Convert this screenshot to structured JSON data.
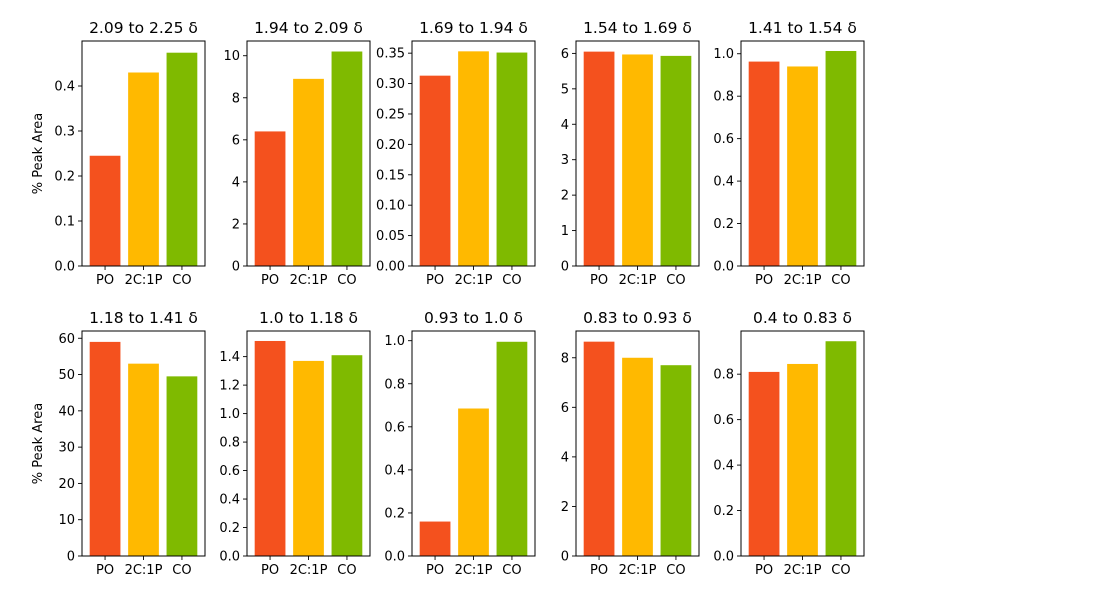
{
  "figure": {
    "ylabel": "% Peak Area",
    "colors": [
      "#f4511e",
      "#ffb900",
      "#7fba00"
    ]
  },
  "chart_data": [
    {
      "type": "bar",
      "title": "2.09 to 2.25 δ",
      "categories": [
        "PO",
        "2C:1P",
        "CO"
      ],
      "values": [
        0.245,
        0.43,
        0.474
      ],
      "ylim": [
        0,
        0.5
      ],
      "yticks": [
        0.0,
        0.1,
        0.2,
        0.3,
        0.4
      ],
      "tick_labels": [
        "0.0",
        "0.1",
        "0.2",
        "0.3",
        "0.4"
      ],
      "ylabel": "% Peak Area"
    },
    {
      "type": "bar",
      "title": "1.94 to 2.09 δ",
      "categories": [
        "PO",
        "2C:1P",
        "CO"
      ],
      "values": [
        6.4,
        8.9,
        10.2
      ],
      "ylim": [
        0,
        10.7
      ],
      "yticks": [
        0,
        2,
        4,
        6,
        8,
        10
      ],
      "tick_labels": [
        "0",
        "2",
        "4",
        "6",
        "8",
        "10"
      ],
      "ylabel": ""
    },
    {
      "type": "bar",
      "title": "1.69 to 1.94 δ",
      "categories": [
        "PO",
        "2C:1P",
        "CO"
      ],
      "values": [
        0.313,
        0.353,
        0.351
      ],
      "ylim": [
        0,
        0.37
      ],
      "yticks": [
        0.0,
        0.05,
        0.1,
        0.15,
        0.2,
        0.25,
        0.3,
        0.35
      ],
      "tick_labels": [
        "0.00",
        "0.05",
        "0.10",
        "0.15",
        "0.20",
        "0.25",
        "0.30",
        "0.35"
      ],
      "ylabel": ""
    },
    {
      "type": "bar",
      "title": "1.54 to 1.69 δ",
      "categories": [
        "PO",
        "2C:1P",
        "CO"
      ],
      "values": [
        6.05,
        5.97,
        5.93
      ],
      "ylim": [
        0,
        6.35
      ],
      "yticks": [
        0,
        1,
        2,
        3,
        4,
        5,
        6
      ],
      "tick_labels": [
        "0",
        "1",
        "2",
        "3",
        "4",
        "5",
        "6"
      ],
      "ylabel": ""
    },
    {
      "type": "bar",
      "title": "1.41 to 1.54 δ",
      "categories": [
        "PO",
        "2C:1P",
        "CO"
      ],
      "values": [
        0.963,
        0.94,
        1.013
      ],
      "ylim": [
        0,
        1.06
      ],
      "yticks": [
        0.0,
        0.2,
        0.4,
        0.6,
        0.8,
        1.0
      ],
      "tick_labels": [
        "0.0",
        "0.2",
        "0.4",
        "0.6",
        "0.8",
        "1.0"
      ],
      "ylabel": ""
    },
    {
      "type": "bar",
      "title": "1.18 to 1.41 δ",
      "categories": [
        "PO",
        "2C:1P",
        "CO"
      ],
      "values": [
        59.0,
        53.0,
        49.5
      ],
      "ylim": [
        0,
        62
      ],
      "yticks": [
        0,
        10,
        20,
        30,
        40,
        50,
        60
      ],
      "tick_labels": [
        "0",
        "10",
        "20",
        "30",
        "40",
        "50",
        "60"
      ],
      "ylabel": "% Peak Area"
    },
    {
      "type": "bar",
      "title": "1.0 to 1.18 δ",
      "categories": [
        "PO",
        "2C:1P",
        "CO"
      ],
      "values": [
        1.51,
        1.37,
        1.41
      ],
      "ylim": [
        0,
        1.58
      ],
      "yticks": [
        0.0,
        0.2,
        0.4,
        0.6,
        0.8,
        1.0,
        1.2,
        1.4
      ],
      "tick_labels": [
        "0.0",
        "0.2",
        "0.4",
        "0.6",
        "0.8",
        "1.0",
        "1.2",
        "1.4"
      ],
      "ylabel": ""
    },
    {
      "type": "bar",
      "title": "0.93 to 1.0 δ",
      "categories": [
        "PO",
        "2C:1P",
        "CO"
      ],
      "values": [
        0.16,
        0.685,
        0.995
      ],
      "ylim": [
        0,
        1.045
      ],
      "yticks": [
        0.0,
        0.2,
        0.4,
        0.6,
        0.8,
        1.0
      ],
      "tick_labels": [
        "0.0",
        "0.2",
        "0.4",
        "0.6",
        "0.8",
        "1.0"
      ],
      "ylabel": ""
    },
    {
      "type": "bar",
      "title": "0.83 to 0.93 δ",
      "categories": [
        "PO",
        "2C:1P",
        "CO"
      ],
      "values": [
        8.65,
        8.0,
        7.7
      ],
      "ylim": [
        0,
        9.08
      ],
      "yticks": [
        0,
        2,
        4,
        6,
        8
      ],
      "tick_labels": [
        "0",
        "2",
        "4",
        "6",
        "8"
      ],
      "ylabel": ""
    },
    {
      "type": "bar",
      "title": "0.4 to 0.83 δ",
      "categories": [
        "PO",
        "2C:1P",
        "CO"
      ],
      "values": [
        0.81,
        0.845,
        0.945
      ],
      "ylim": [
        0,
        0.99
      ],
      "yticks": [
        0.0,
        0.2,
        0.4,
        0.6,
        0.8
      ],
      "tick_labels": [
        "0.0",
        "0.2",
        "0.4",
        "0.6",
        "0.8"
      ],
      "ylabel": ""
    }
  ]
}
